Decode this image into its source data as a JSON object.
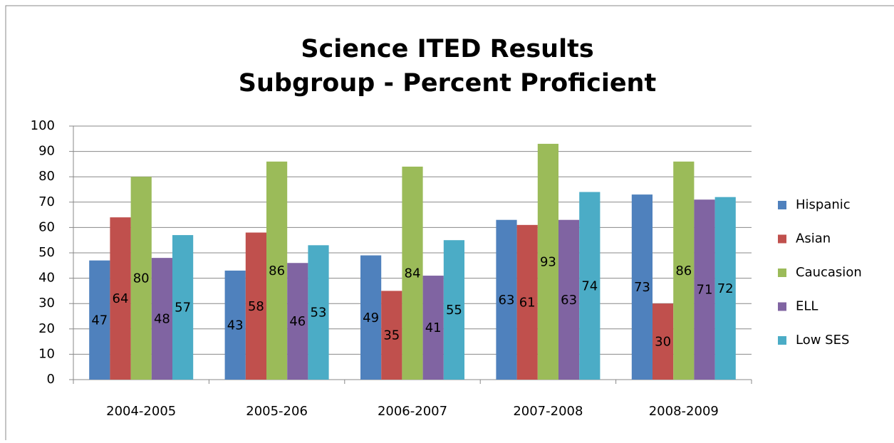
{
  "chart_data": {
    "type": "bar",
    "title": [
      "Science ITED Results",
      "Subgroup - Percent Proficient"
    ],
    "categories": [
      "2004-2005",
      "2005-206",
      "2006-2007",
      "2007-2008",
      "2008-2009"
    ],
    "series": [
      {
        "name": "Hispanic",
        "color": "#4f81bd",
        "values": [
          47,
          43,
          49,
          63,
          73
        ]
      },
      {
        "name": "Asian",
        "color": "#c0504d",
        "values": [
          64,
          58,
          35,
          61,
          30
        ]
      },
      {
        "name": "Caucasion",
        "color": "#9bbb59",
        "values": [
          80,
          86,
          84,
          93,
          86
        ]
      },
      {
        "name": "ELL",
        "color": "#8064a2",
        "values": [
          48,
          46,
          41,
          63,
          71
        ]
      },
      {
        "name": "Low SES",
        "color": "#4bacc6",
        "values": [
          57,
          53,
          55,
          74,
          72
        ]
      }
    ],
    "ylim": [
      0,
      100
    ],
    "yticks": [
      0,
      10,
      20,
      30,
      40,
      50,
      60,
      70,
      80,
      90,
      100
    ],
    "grid": true,
    "legend": "right",
    "data_labels": true
  }
}
